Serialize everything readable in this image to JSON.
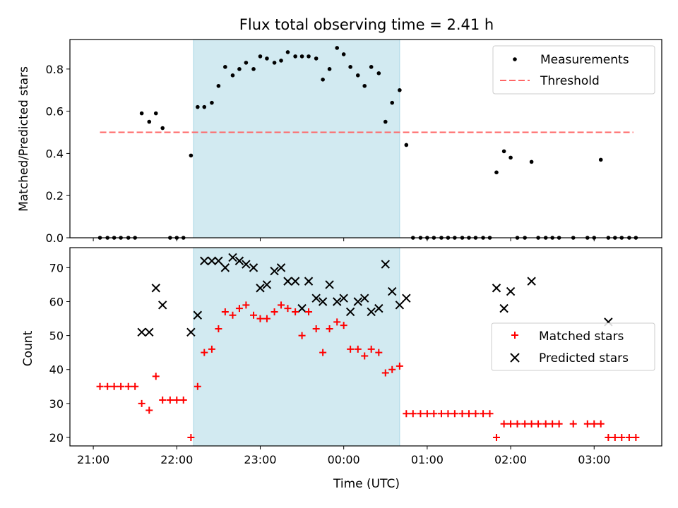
{
  "title": "Flux total observing time = 2.41 h",
  "colors": {
    "shade": "#add8e6",
    "measurements": "#000000",
    "threshold": "#ff6666",
    "matched": "#ff0000",
    "predicted": "#000000"
  },
  "chart_data": [
    {
      "type": "scatter",
      "ylabel": "Matched/Predicted stars",
      "ylim": [
        0,
        0.94
      ],
      "yticks": [
        0.0,
        0.2,
        0.4,
        0.6,
        0.8
      ],
      "ytick_labels": [
        "0.0",
        "0.2",
        "0.4",
        "0.6",
        "0.8"
      ],
      "xlim": [
        20.72,
        27.81
      ],
      "shaded_interval": [
        22.2,
        24.67
      ],
      "legend": {
        "position": "top-right",
        "entries": [
          "Measurements",
          "Threshold"
        ]
      },
      "threshold": {
        "name": "Threshold",
        "value": 0.5,
        "x_range": [
          21.08,
          27.47
        ]
      },
      "series": [
        {
          "name": "Measurements",
          "marker": "dot",
          "x": [
            21.08,
            21.17,
            21.25,
            21.33,
            21.42,
            21.5,
            21.58,
            21.67,
            21.75,
            21.83,
            21.92,
            22.0,
            22.08,
            22.17,
            22.25,
            22.33,
            22.42,
            22.5,
            22.58,
            22.67,
            22.75,
            22.83,
            22.92,
            23.0,
            23.08,
            23.17,
            23.25,
            23.33,
            23.42,
            23.5,
            23.58,
            23.67,
            23.75,
            23.83,
            23.92,
            24.0,
            24.08,
            24.17,
            24.25,
            24.33,
            24.42,
            24.5,
            24.58,
            24.67,
            24.75,
            24.83,
            24.92,
            25.0,
            25.08,
            25.17,
            25.25,
            25.33,
            25.42,
            25.5,
            25.58,
            25.67,
            25.75,
            25.83,
            25.92,
            26.0,
            26.08,
            26.17,
            26.25,
            26.33,
            26.42,
            26.5,
            26.58,
            26.75,
            26.92,
            27.0,
            27.08,
            27.17,
            27.25,
            27.33,
            27.42,
            27.5
          ],
          "y": [
            0,
            0,
            0,
            0,
            0,
            0,
            0.59,
            0.55,
            0.59,
            0.52,
            0,
            0,
            0,
            0.39,
            0.62,
            0.62,
            0.64,
            0.72,
            0.81,
            0.77,
            0.8,
            0.83,
            0.8,
            0.86,
            0.85,
            0.83,
            0.84,
            0.88,
            0.86,
            0.86,
            0.86,
            0.85,
            0.75,
            0.8,
            0.9,
            0.87,
            0.81,
            0.77,
            0.72,
            0.81,
            0.78,
            0.55,
            0.64,
            0.7,
            0.44,
            0,
            0,
            0,
            0,
            0,
            0,
            0,
            0,
            0,
            0,
            0,
            0,
            0.31,
            0.41,
            0.38,
            0,
            0,
            0.36,
            0,
            0,
            0,
            0,
            0,
            0,
            0,
            0.37,
            0,
            0,
            0,
            0,
            0
          ]
        }
      ]
    },
    {
      "type": "scatter",
      "ylabel": "Count",
      "xlabel": "Time (UTC)",
      "ylim": [
        17.5,
        75.9
      ],
      "yticks": [
        20,
        30,
        40,
        50,
        60,
        70
      ],
      "ytick_labels": [
        "20",
        "30",
        "40",
        "50",
        "60",
        "70"
      ],
      "xlim": [
        20.72,
        27.81
      ],
      "xticks": [
        21,
        22,
        23,
        24,
        25,
        26,
        27
      ],
      "xtick_labels": [
        "21:00",
        "22:00",
        "23:00",
        "00:00",
        "01:00",
        "02:00",
        "03:00"
      ],
      "shaded_interval": [
        22.2,
        24.67
      ],
      "legend": {
        "position": "center-right",
        "entries": [
          "Matched stars",
          "Predicted stars"
        ]
      },
      "series": [
        {
          "name": "Matched stars",
          "marker": "plus",
          "x": [
            21.08,
            21.17,
            21.25,
            21.33,
            21.42,
            21.5,
            21.58,
            21.67,
            21.75,
            21.83,
            21.92,
            22.0,
            22.08,
            22.17,
            22.25,
            22.33,
            22.42,
            22.5,
            22.58,
            22.67,
            22.75,
            22.83,
            22.92,
            23.0,
            23.08,
            23.17,
            23.25,
            23.33,
            23.42,
            23.5,
            23.58,
            23.67,
            23.75,
            23.83,
            23.92,
            24.0,
            24.08,
            24.17,
            24.25,
            24.33,
            24.42,
            24.5,
            24.58,
            24.67,
            24.75,
            24.83,
            24.92,
            25.0,
            25.08,
            25.17,
            25.25,
            25.33,
            25.42,
            25.5,
            25.58,
            25.67,
            25.75,
            25.83,
            25.92,
            26.0,
            26.08,
            26.17,
            26.25,
            26.33,
            26.42,
            26.5,
            26.58,
            26.75,
            26.92,
            27.0,
            27.08,
            27.17,
            27.25,
            27.33,
            27.42,
            27.5
          ],
          "y": [
            35,
            35,
            35,
            35,
            35,
            35,
            30,
            28,
            38,
            31,
            31,
            31,
            31,
            20,
            35,
            45,
            46,
            52,
            57,
            56,
            58,
            59,
            56,
            55,
            55,
            57,
            59,
            58,
            57,
            50,
            57,
            52,
            45,
            52,
            54,
            53,
            46,
            46,
            44,
            46,
            45,
            39,
            40,
            41,
            27,
            27,
            27,
            27,
            27,
            27,
            27,
            27,
            27,
            27,
            27,
            27,
            27,
            20,
            24,
            24,
            24,
            24,
            24,
            24,
            24,
            24,
            24,
            24,
            24,
            24,
            24,
            20,
            20,
            20,
            20,
            20
          ]
        },
        {
          "name": "Predicted stars",
          "marker": "x",
          "x": [
            21.58,
            21.67,
            21.75,
            21.83,
            22.17,
            22.25,
            22.33,
            22.42,
            22.5,
            22.58,
            22.67,
            22.75,
            22.83,
            22.92,
            23.0,
            23.08,
            23.17,
            23.25,
            23.33,
            23.42,
            23.5,
            23.58,
            23.67,
            23.75,
            23.83,
            23.92,
            24.0,
            24.08,
            24.17,
            24.25,
            24.33,
            24.42,
            24.5,
            24.58,
            24.67,
            24.75,
            25.83,
            25.92,
            26.0,
            26.25,
            27.17
          ],
          "y": [
            51,
            51,
            64,
            59,
            51,
            56,
            72,
            72,
            72,
            70,
            73,
            72,
            71,
            70,
            64,
            65,
            69,
            70,
            66,
            66,
            58,
            66,
            61,
            60,
            65,
            60,
            61,
            57,
            60,
            61,
            57,
            58,
            71,
            63,
            59,
            61,
            64,
            58,
            63,
            66,
            54
          ]
        }
      ]
    }
  ]
}
